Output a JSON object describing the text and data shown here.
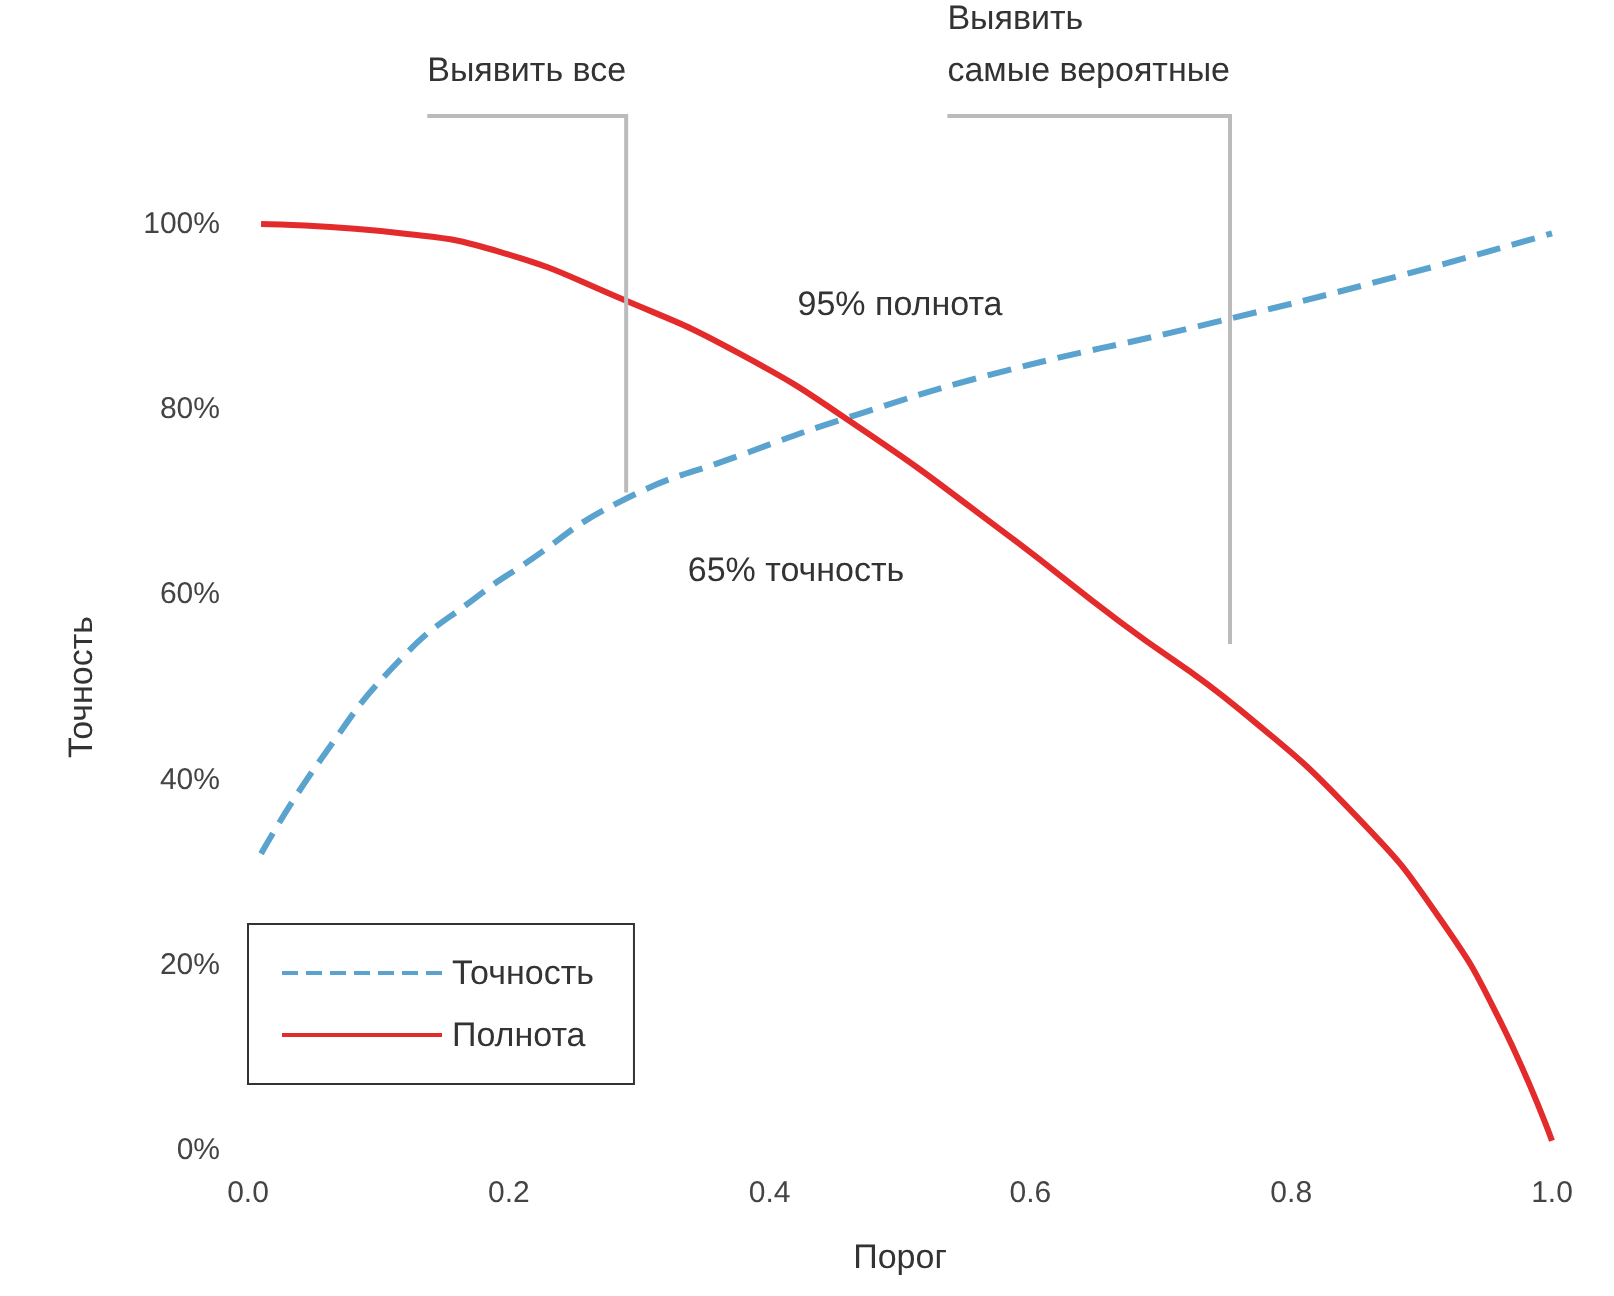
{
  "chart_data": {
    "type": "line",
    "xlabel": "Порог",
    "ylabel": "Точность",
    "xlim": [
      0,
      1
    ],
    "xticks": [
      {
        "value": 0,
        "label": "0.0"
      },
      {
        "value": 0.2,
        "label": "0.2"
      },
      {
        "value": 0.4,
        "label": "0.4"
      },
      {
        "value": 0.6,
        "label": "0.6"
      },
      {
        "value": 0.8,
        "label": "0.8"
      },
      {
        "value": 1,
        "label": "1.0"
      }
    ],
    "ylim": [
      0,
      100
    ],
    "yticks": [
      {
        "value": 0,
        "label": "0%"
      },
      {
        "value": 20,
        "label": "20%"
      },
      {
        "value": 40,
        "label": "40%"
      },
      {
        "value": 60,
        "label": "60%"
      },
      {
        "value": 80,
        "label": "80%"
      },
      {
        "value": 100,
        "label": "100%"
      }
    ],
    "grid": false,
    "legend": "bottom left",
    "marker": "none",
    "series": [
      {
        "name": "Точность",
        "color": "#5ba3cf",
        "line_style": "dashed",
        "x": [
          0.01,
          0.055,
          0.117,
          0.178,
          0.209,
          0.285,
          0.377,
          0.469,
          0.577,
          0.73,
          0.883,
          1.0
        ],
        "values": [
          32,
          42,
          53,
          60,
          63,
          70,
          75,
          79.5,
          84,
          89,
          94.4,
          99
        ]
      },
      {
        "name": "Полнота",
        "color": "#e32b2b",
        "line_style": "solid",
        "x": [
          0.01,
          0.117,
          0.193,
          0.285,
          0.377,
          0.469,
          0.577,
          0.669,
          0.761,
          0.853,
          0.914,
          0.96,
          1.0
        ],
        "values": [
          100,
          99,
          97,
          92,
          86,
          78,
          67,
          57,
          47.5,
          35.6,
          25,
          14,
          1
        ]
      }
    ],
    "annotations": [
      {
        "text": "Выявить все",
        "x": 0.29,
        "y": 71
      },
      "Выявить\nсамые вероятные",
      "95% полнота",
      "65% точность"
    ]
  }
}
